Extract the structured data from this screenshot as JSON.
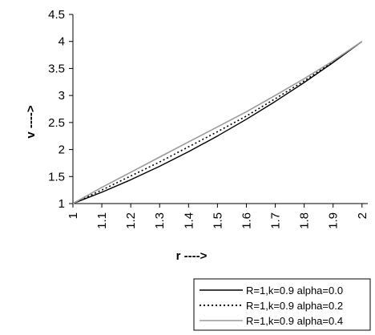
{
  "chart_data": {
    "type": "line",
    "title": "",
    "xlabel": "r ---->",
    "ylabel": "v ---->",
    "xlim": [
      1,
      2.02
    ],
    "ylim": [
      1,
      4.5
    ],
    "x_ticks": [
      "1",
      "1.1",
      "1.2",
      "1.3",
      "1.4",
      "1.5",
      "1.6",
      "1.7",
      "1.8",
      "1.9",
      "2"
    ],
    "y_ticks": [
      "1",
      "1.5",
      "2",
      "2.5",
      "3",
      "3.5",
      "4",
      "4.5"
    ],
    "grid": false,
    "legend_position": "bottom-right",
    "series": [
      {
        "name": "R=1,k=0.9 alpha=0.0",
        "color": "#000000",
        "style": "solid",
        "x": [
          1.0,
          1.1,
          1.2,
          1.3,
          1.4,
          1.5,
          1.6,
          1.7,
          1.8,
          1.9,
          2.0
        ],
        "y": [
          1.0,
          1.21,
          1.44,
          1.69,
          1.96,
          2.25,
          2.56,
          2.89,
          3.24,
          3.61,
          4.0
        ]
      },
      {
        "name": "R=1,k=0.9 alpha=0.2",
        "color": "#000000",
        "style": "dotted",
        "x": [
          1.0,
          1.1,
          1.2,
          1.3,
          1.4,
          1.5,
          1.6,
          1.7,
          1.8,
          1.9,
          2.0
        ],
        "y": [
          1.0,
          1.25,
          1.51,
          1.77,
          2.05,
          2.33,
          2.62,
          2.94,
          3.27,
          3.62,
          4.0
        ]
      },
      {
        "name": "R=1,k=0.9 alpha=0.4",
        "color": "#9a9a9a",
        "style": "solid",
        "x": [
          1.0,
          1.1,
          1.2,
          1.3,
          1.4,
          1.5,
          1.6,
          1.7,
          1.8,
          1.9,
          2.0
        ],
        "y": [
          1.0,
          1.3,
          1.58,
          1.86,
          2.14,
          2.42,
          2.7,
          3.0,
          3.31,
          3.64,
          4.0
        ]
      }
    ]
  }
}
